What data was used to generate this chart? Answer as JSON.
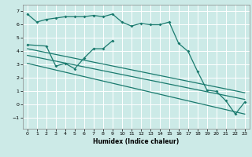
{
  "title": "",
  "xlabel": "Humidex (Indice chaleur)",
  "ylabel": "",
  "background_color": "#cceae7",
  "grid_color": "#ffffff",
  "line_color": "#1a7a6e",
  "xlim": [
    -0.5,
    23.5
  ],
  "ylim": [
    -1.8,
    7.5
  ],
  "yticks": [
    -1,
    0,
    1,
    2,
    3,
    4,
    5,
    6,
    7
  ],
  "xticks": [
    0,
    1,
    2,
    3,
    4,
    5,
    6,
    7,
    8,
    9,
    10,
    11,
    12,
    13,
    14,
    15,
    16,
    17,
    18,
    19,
    20,
    21,
    22,
    23
  ],
  "line1_x": [
    0,
    1,
    2,
    3,
    4,
    5,
    6,
    7,
    8,
    9,
    10,
    11,
    12,
    13,
    14,
    15,
    16,
    17,
    18,
    19,
    20,
    21,
    22,
    23
  ],
  "line1_y": [
    6.8,
    6.2,
    6.4,
    6.5,
    6.6,
    6.6,
    6.6,
    6.7,
    6.6,
    6.8,
    6.2,
    5.9,
    6.1,
    6.0,
    6.0,
    6.2,
    4.6,
    4.0,
    2.5,
    1.1,
    1.0,
    0.3,
    -0.7,
    0.2
  ],
  "line2_x": [
    0,
    2,
    3,
    4,
    5,
    6,
    7,
    8,
    9
  ],
  "line2_y": [
    4.5,
    4.4,
    2.9,
    3.1,
    2.7,
    3.5,
    4.2,
    4.2,
    4.8
  ],
  "line3_x": [
    0,
    23
  ],
  "line3_y": [
    4.2,
    0.9
  ],
  "line4_x": [
    0,
    23
  ],
  "line4_y": [
    3.7,
    0.4
  ],
  "line5_x": [
    0,
    23
  ],
  "line5_y": [
    3.1,
    -0.7
  ]
}
